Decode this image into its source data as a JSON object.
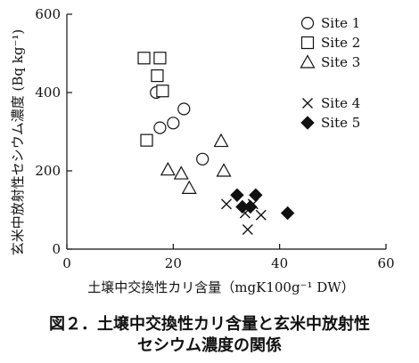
{
  "chart_data": {
    "type": "scatter",
    "title": "",
    "xlabel": "土壌中交換性カリ含量（mgK100g⁻¹ DW）",
    "ylabel": "玄米中放射性セシウム濃度 (Bq kg⁻¹)",
    "xlim": [
      0,
      60
    ],
    "ylim": [
      0,
      600
    ],
    "xticks": [
      0,
      20,
      40,
      60
    ],
    "yticks": [
      0,
      200,
      400,
      600
    ],
    "legend_position": "top-right",
    "grid": false,
    "series": [
      {
        "name": "Site 1",
        "marker": "circle",
        "points": [
          [
            16.8,
            400
          ],
          [
            20.0,
            322
          ],
          [
            17.5,
            310
          ],
          [
            22.0,
            358
          ],
          [
            25.5,
            230
          ]
        ]
      },
      {
        "name": "Site 2",
        "marker": "square",
        "points": [
          [
            14.5,
            488
          ],
          [
            17.5,
            488
          ],
          [
            17.0,
            443
          ],
          [
            18.0,
            404
          ],
          [
            15.0,
            278
          ]
        ]
      },
      {
        "name": "Site 3",
        "marker": "triangle",
        "points": [
          [
            29.0,
            276
          ],
          [
            29.5,
            200
          ],
          [
            19.0,
            203
          ],
          [
            21.5,
            193
          ],
          [
            23.0,
            156
          ]
        ]
      },
      {
        "name": "Site 4",
        "marker": "x",
        "points": [
          [
            30.0,
            115
          ],
          [
            33.5,
            92
          ],
          [
            35.0,
            115
          ],
          [
            36.5,
            87
          ],
          [
            34.0,
            50
          ]
        ]
      },
      {
        "name": "Site 5",
        "marker": "diamond",
        "points": [
          [
            32.0,
            138
          ],
          [
            33.0,
            108
          ],
          [
            34.5,
            108
          ],
          [
            35.5,
            138
          ],
          [
            41.5,
            92
          ]
        ]
      }
    ]
  },
  "caption": {
    "line1": "図２．土壌中交換性カリ含量と玄米中放射性",
    "line2": "セシウム濃度の関係"
  }
}
